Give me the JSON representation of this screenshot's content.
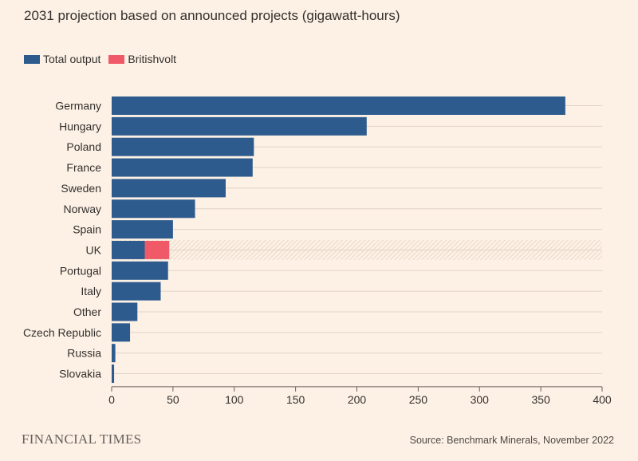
{
  "title": "2031 projection based on announced projects (gigawatt-hours)",
  "legend": [
    {
      "label": "Total output",
      "color": "#2e5b8e"
    },
    {
      "label": "Britishvolt",
      "color": "#f05a68"
    }
  ],
  "source": "Source: Benchmark Minerals, November 2022",
  "brand": "FINANCIAL TIMES",
  "chart_data": {
    "type": "bar",
    "orientation": "horizontal",
    "stacked": true,
    "categories": [
      "Germany",
      "Hungary",
      "Poland",
      "France",
      "Sweden",
      "Norway",
      "Spain",
      "UK",
      "Portugal",
      "Italy",
      "Other",
      "Czech Republic",
      "Russia",
      "Slovakia"
    ],
    "series": [
      {
        "name": "Total output",
        "color": "#2e5b8e",
        "values": [
          370,
          208,
          116,
          115,
          93,
          68,
          50,
          27,
          46,
          40,
          21,
          15,
          3,
          2
        ]
      },
      {
        "name": "Britishvolt",
        "color": "#f05a68",
        "values": [
          0,
          0,
          0,
          0,
          0,
          0,
          0,
          20,
          0,
          0,
          0,
          0,
          0,
          0
        ]
      }
    ],
    "highlight_category": "UK",
    "xlim": [
      0,
      400
    ],
    "xticks": [
      0,
      50,
      100,
      150,
      200,
      250,
      300,
      350,
      400
    ],
    "grid": true
  }
}
